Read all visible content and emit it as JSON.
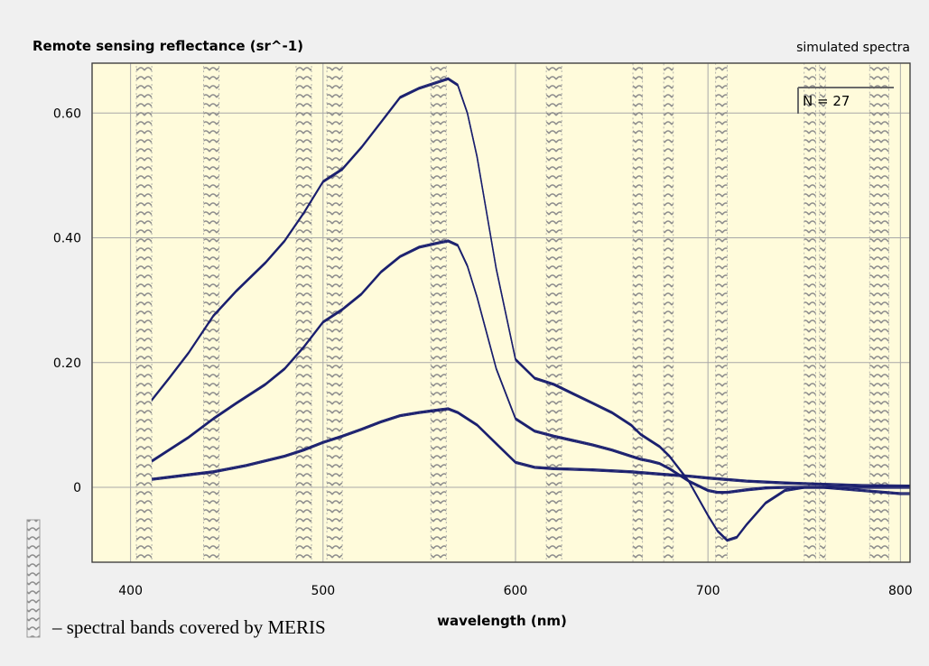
{
  "chart_data": {
    "type": "line",
    "title": "Remote sensing reflectance (sr^-1)",
    "subtitle": "simulated spectra",
    "xlabel": "wavelength (nm)",
    "ylabel": "Remote sensing reflectance (sr^-1)",
    "xlim": [
      380,
      805
    ],
    "ylim": [
      -0.12,
      0.68
    ],
    "xticks": [
      400,
      500,
      600,
      700,
      800
    ],
    "xtick_labels": [
      "400",
      "500",
      "600",
      "700",
      "800"
    ],
    "yticks": [
      0,
      0.2,
      0.4,
      0.6
    ],
    "ytick_labels": [
      "0",
      "0.20",
      "0.40",
      "0.60"
    ],
    "grid": true,
    "annotation": "N = 27",
    "line_color": "#1a1f6e",
    "background_color": "#fffbdb",
    "band_color": "#8c8c8c",
    "meris_bands": [
      [
        403,
        411
      ],
      [
        438,
        446
      ],
      [
        486,
        494
      ],
      [
        502,
        510
      ],
      [
        556,
        564
      ],
      [
        616,
        624
      ],
      [
        661,
        666
      ],
      [
        677,
        682
      ],
      [
        704,
        710
      ],
      [
        750,
        756
      ],
      [
        758,
        761
      ],
      [
        784,
        794
      ]
    ],
    "legend_text": "– spectral bands covered by MERIS",
    "series": [
      {
        "x": [
          411,
          420,
          430,
          443,
          455,
          470,
          480,
          490,
          500,
          510,
          520,
          530,
          540,
          550,
          560,
          565,
          570,
          575,
          580,
          590,
          600,
          610,
          620,
          630,
          640,
          650,
          660,
          665,
          670,
          675,
          680,
          690,
          700,
          705,
          710,
          715,
          720,
          730,
          740,
          750,
          760,
          780,
          800,
          805
        ],
        "y": [
          0.14,
          0.175,
          0.215,
          0.275,
          0.315,
          0.36,
          0.395,
          0.44,
          0.49,
          0.51,
          0.545,
          0.585,
          0.625,
          0.64,
          0.65,
          0.655,
          0.645,
          0.6,
          0.53,
          0.35,
          0.205,
          0.175,
          0.165,
          0.15,
          0.135,
          0.12,
          0.1,
          0.085,
          0.075,
          0.065,
          0.05,
          0.01,
          -0.045,
          -0.07,
          -0.085,
          -0.08,
          -0.06,
          -0.025,
          -0.005,
          0.0,
          0.0,
          -0.005,
          -0.01,
          -0.01
        ]
      },
      {
        "x": [
          411,
          420,
          430,
          443,
          455,
          470,
          480,
          490,
          500,
          510,
          520,
          530,
          540,
          550,
          560,
          565,
          570,
          575,
          580,
          590,
          600,
          610,
          620,
          630,
          640,
          650,
          660,
          665,
          670,
          675,
          680,
          690,
          700,
          705,
          710,
          720,
          730,
          740,
          760,
          780,
          800,
          805
        ],
        "y": [
          0.042,
          0.06,
          0.08,
          0.11,
          0.135,
          0.165,
          0.19,
          0.225,
          0.265,
          0.285,
          0.31,
          0.345,
          0.37,
          0.385,
          0.392,
          0.395,
          0.388,
          0.355,
          0.305,
          0.19,
          0.11,
          0.09,
          0.082,
          0.075,
          0.068,
          0.06,
          0.05,
          0.045,
          0.042,
          0.038,
          0.03,
          0.01,
          -0.005,
          -0.008,
          -0.008,
          -0.004,
          -0.001,
          0.0,
          0.0,
          0.0,
          0.0,
          0.0
        ]
      },
      {
        "x": [
          411,
          430,
          443,
          460,
          480,
          490,
          500,
          510,
          520,
          530,
          540,
          550,
          560,
          565,
          570,
          580,
          590,
          600,
          610,
          620,
          640,
          660,
          680,
          690,
          700,
          720,
          740,
          760,
          780,
          805
        ],
        "y": [
          0.013,
          0.02,
          0.025,
          0.035,
          0.05,
          0.06,
          0.072,
          0.082,
          0.093,
          0.105,
          0.115,
          0.12,
          0.124,
          0.126,
          0.12,
          0.1,
          0.07,
          0.04,
          0.032,
          0.03,
          0.028,
          0.025,
          0.02,
          0.018,
          0.015,
          0.01,
          0.007,
          0.005,
          0.003,
          0.002
        ]
      }
    ]
  }
}
